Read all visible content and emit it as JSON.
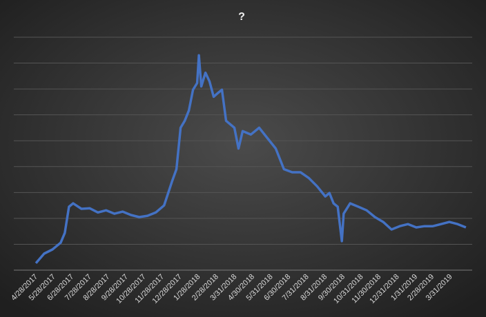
{
  "chart_data": {
    "type": "line",
    "title": "?",
    "color": "#4472c4",
    "grid": true,
    "show_ytick_labels": false,
    "ylim": [
      0,
      9
    ],
    "yticks": [
      0,
      1,
      2,
      3,
      4,
      5,
      6,
      7,
      8,
      9
    ],
    "xlim": [
      "4/28/2017",
      "5/2/2019"
    ],
    "xticks": [
      "4/28/2017",
      "5/28/2017",
      "6/28/2017",
      "7/28/2017",
      "8/28/2017",
      "9/28/2017",
      "10/28/2017",
      "11/28/2017",
      "12/28/2017",
      "1/28/2018",
      "2/28/2018",
      "3/31/2018",
      "4/30/2018",
      "5/31/2018",
      "6/30/2018",
      "7/31/2018",
      "8/31/2018",
      "9/30/2018",
      "10/31/2018",
      "11/30/2018",
      "12/31/2018",
      "1/31/2019",
      "2/28/2019",
      "3/31/2019"
    ],
    "x": [
      "4/28/2017",
      "5/12/2017",
      "5/26/2017",
      "6/9/2017",
      "6/16/2017",
      "6/23/2017",
      "6/30/2017",
      "7/14/2017",
      "7/28/2017",
      "8/11/2017",
      "8/25/2017",
      "9/8/2017",
      "9/22/2017",
      "10/6/2017",
      "10/20/2017",
      "11/3/2017",
      "11/17/2017",
      "12/1/2017",
      "12/15/2017",
      "12/22/2017",
      "12/29/2017",
      "1/5/2018",
      "1/12/2018",
      "1/19/2018",
      "1/26/2018",
      "1/29/2018",
      "2/2/2018",
      "2/9/2018",
      "2/16/2018",
      "2/23/2018",
      "3/2/2018",
      "3/9/2018",
      "3/16/2018",
      "3/30/2018",
      "4/6/2018",
      "4/13/2018",
      "4/27/2018",
      "5/11/2018",
      "5/25/2018",
      "6/8/2018",
      "6/22/2018",
      "7/6/2018",
      "7/20/2018",
      "8/3/2018",
      "8/17/2018",
      "8/31/2018",
      "9/7/2018",
      "9/14/2018",
      "9/21/2018",
      "9/28/2018",
      "10/1/2018",
      "10/12/2018",
      "10/26/2018",
      "11/9/2018",
      "11/23/2018",
      "12/7/2018",
      "12/21/2018",
      "1/4/2019",
      "1/18/2019",
      "2/1/2019",
      "2/15/2019",
      "3/1/2019",
      "3/15/2019",
      "3/29/2019",
      "4/12/2019",
      "4/26/2019"
    ],
    "values": [
      0.27,
      0.64,
      0.8,
      1.06,
      1.44,
      2.45,
      2.58,
      2.37,
      2.39,
      2.23,
      2.31,
      2.18,
      2.26,
      2.13,
      2.05,
      2.1,
      2.23,
      2.5,
      3.46,
      3.9,
      5.5,
      5.77,
      6.17,
      6.97,
      7.23,
      8.3,
      7.1,
      7.63,
      7.29,
      6.7,
      6.84,
      6.97,
      5.77,
      5.5,
      4.7,
      5.37,
      5.24,
      5.5,
      5.1,
      4.7,
      3.9,
      3.78,
      3.78,
      3.56,
      3.24,
      2.85,
      2.98,
      2.58,
      2.45,
      1.12,
      2.18,
      2.58,
      2.45,
      2.31,
      2.05,
      1.86,
      1.57,
      1.7,
      1.78,
      1.65,
      1.7,
      1.7,
      1.78,
      1.86,
      1.78,
      1.65
    ]
  }
}
